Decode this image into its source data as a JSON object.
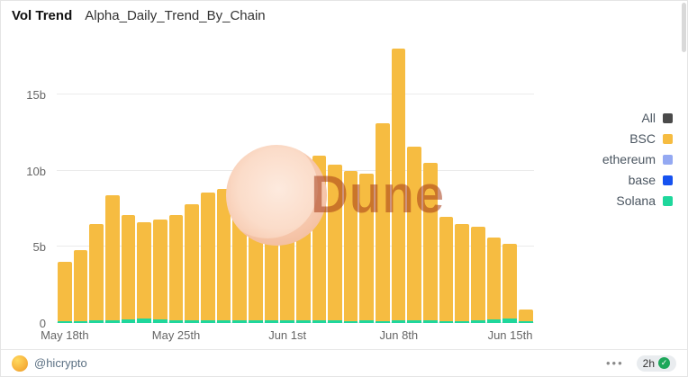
{
  "header": {
    "title": "Vol Trend",
    "subtitle": "Alpha_Daily_Trend_By_Chain"
  },
  "watermark": {
    "text": "Dune"
  },
  "footer": {
    "handle": "@hicrypto",
    "menu_label": "•••",
    "badge_time": "2h",
    "badge_check": "✓"
  },
  "chart_data": {
    "type": "bar",
    "stacked": true,
    "title": "Alpha_Daily_Trend_By_Chain",
    "grid": true,
    "legend_position": "right",
    "ylim": [
      0,
      18.5
    ],
    "x": [
      "May 18",
      "May 19",
      "May 20",
      "May 21",
      "May 22",
      "May 23",
      "May 24",
      "May 25",
      "May 26",
      "May 27",
      "May 28",
      "May 29",
      "May 30",
      "May 31",
      "Jun 1",
      "Jun 2",
      "Jun 3",
      "Jun 4",
      "Jun 5",
      "Jun 6",
      "Jun 7",
      "Jun 8",
      "Jun 9",
      "Jun 10",
      "Jun 11",
      "Jun 12",
      "Jun 13",
      "Jun 14",
      "Jun 15",
      "Jun 16"
    ],
    "series": [
      {
        "name": "BSC",
        "color": "#f6bc41",
        "values": [
          3.9,
          4.7,
          6.35,
          8.2,
          6.85,
          6.3,
          6.55,
          6.9,
          7.65,
          8.45,
          8.65,
          9.4,
          9.85,
          9.25,
          10.1,
          10.35,
          10.85,
          10.25,
          9.9,
          9.65,
          13.0,
          17.85,
          11.45,
          10.35,
          6.9,
          6.4,
          6.15,
          5.35,
          4.9,
          0.8
        ]
      },
      {
        "name": "Solana",
        "color": "#1fd79c",
        "values": [
          0.1,
          0.1,
          0.15,
          0.2,
          0.25,
          0.3,
          0.25,
          0.2,
          0.15,
          0.15,
          0.15,
          0.2,
          0.15,
          0.15,
          0.2,
          0.15,
          0.15,
          0.15,
          0.1,
          0.15,
          0.1,
          0.15,
          0.15,
          0.15,
          0.1,
          0.1,
          0.15,
          0.25,
          0.3,
          0.1
        ]
      }
    ],
    "x_ticks": [
      {
        "index": 0,
        "label": "May 18th"
      },
      {
        "index": 7,
        "label": "May 25th"
      },
      {
        "index": 14,
        "label": "Jun 1st"
      },
      {
        "index": 21,
        "label": "Jun 8th"
      },
      {
        "index": 28,
        "label": "Jun 15th"
      }
    ],
    "y_ticks": [
      {
        "value": 0,
        "label": "0"
      },
      {
        "value": 5,
        "label": "5b"
      },
      {
        "value": 10,
        "label": "10b"
      },
      {
        "value": 15,
        "label": "15b"
      }
    ],
    "legend": [
      {
        "label": "All",
        "color": "#4a4a4a"
      },
      {
        "label": "BSC",
        "color": "#f6bc41"
      },
      {
        "label": "ethereum",
        "color": "#94a9f2"
      },
      {
        "label": "base",
        "color": "#1652f0"
      },
      {
        "label": "Solana",
        "color": "#1fd79c"
      }
    ]
  }
}
